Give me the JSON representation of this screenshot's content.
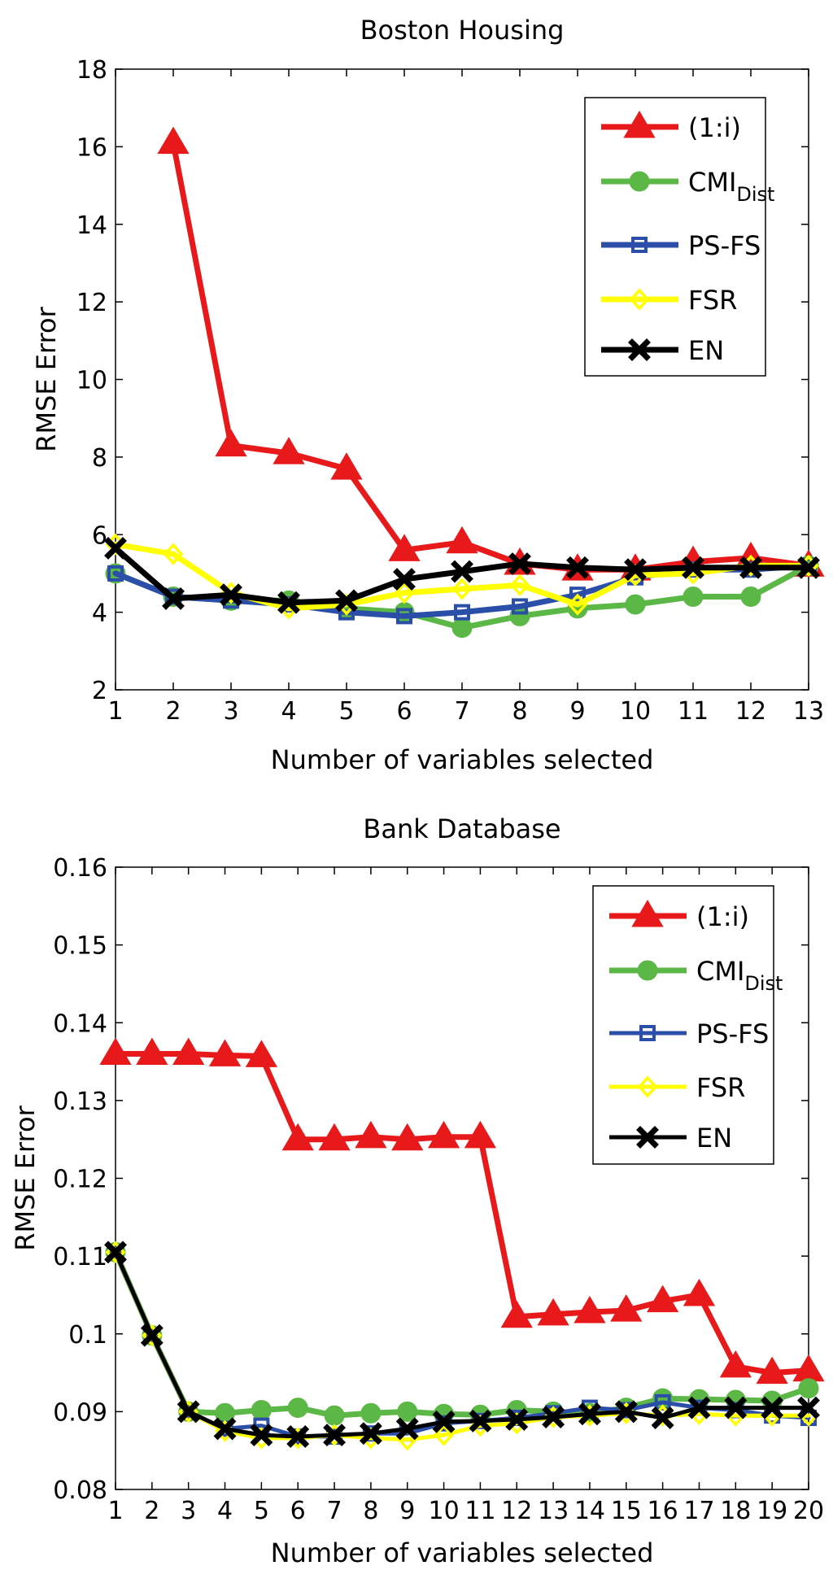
{
  "colors": {
    "red": "#e8191b",
    "green": "#5cb846",
    "blue": "#2b4ea8",
    "yellow": "#ffff00",
    "black": "#000000"
  },
  "chart_data": [
    {
      "type": "line",
      "title": "Boston Housing",
      "xlabel": "Number of variables selected",
      "ylabel": "RMSE Error",
      "xlim": [
        1,
        13
      ],
      "ylim": [
        2,
        18
      ],
      "xticks": [
        1,
        2,
        3,
        4,
        5,
        6,
        7,
        8,
        9,
        10,
        11,
        12,
        13
      ],
      "yticks": [
        2,
        4,
        6,
        8,
        10,
        12,
        14,
        16,
        18
      ],
      "ytick_labels": [
        "2",
        "4",
        "6",
        "8",
        "10",
        "12",
        "14",
        "16",
        "18"
      ],
      "legend_position": "top-right",
      "series": [
        {
          "name": "(1:i)",
          "label_main": "(1:i)",
          "label_sub": "",
          "color": "red",
          "marker": "triangle",
          "x": [
            2,
            3,
            4,
            5,
            6,
            7,
            8,
            9,
            10,
            11,
            12,
            13
          ],
          "y": [
            16.1,
            8.3,
            8.1,
            7.7,
            5.6,
            5.8,
            5.25,
            5.1,
            5.1,
            5.3,
            5.4,
            5.2
          ]
        },
        {
          "name": "CMI_Dist",
          "label_main": "CMI",
          "label_sub": "Dist",
          "color": "green",
          "marker": "circle",
          "x": [
            1,
            2,
            3,
            4,
            5,
            6,
            7,
            8,
            9,
            10,
            11,
            12,
            13
          ],
          "y": [
            5.0,
            4.4,
            4.3,
            4.3,
            4.1,
            4.0,
            3.6,
            3.9,
            4.1,
            4.2,
            4.4,
            4.4,
            5.2
          ]
        },
        {
          "name": "PS-FS",
          "label_main": "PS-FS",
          "label_sub": "",
          "color": "blue",
          "marker": "square",
          "x": [
            1,
            2,
            3,
            4,
            5,
            6,
            7,
            8,
            9,
            10,
            11,
            12,
            13
          ],
          "y": [
            5.0,
            4.4,
            4.3,
            4.2,
            4.0,
            3.9,
            4.0,
            4.15,
            4.45,
            4.9,
            5.1,
            5.1,
            5.2
          ]
        },
        {
          "name": "FSR",
          "label_main": "FSR",
          "label_sub": "",
          "color": "yellow",
          "marker": "diamond",
          "x": [
            1,
            2,
            3,
            4,
            5,
            6,
            7,
            8,
            9,
            10,
            11,
            12,
            13
          ],
          "y": [
            5.75,
            5.5,
            4.5,
            4.1,
            4.2,
            4.5,
            4.6,
            4.7,
            4.2,
            4.95,
            5.0,
            5.2,
            5.2
          ]
        },
        {
          "name": "EN",
          "label_main": "EN",
          "label_sub": "",
          "color": "black",
          "marker": "x",
          "x": [
            1,
            2,
            3,
            4,
            5,
            6,
            7,
            8,
            9,
            10,
            11,
            12,
            13
          ],
          "y": [
            5.65,
            4.35,
            4.45,
            4.25,
            4.3,
            4.85,
            5.05,
            5.25,
            5.15,
            5.1,
            5.15,
            5.15,
            5.15
          ]
        }
      ]
    },
    {
      "type": "line",
      "title": "Bank Database",
      "xlabel": "Number of variables selected",
      "ylabel": "RMSE Error",
      "xlim": [
        1,
        20
      ],
      "ylim": [
        0.08,
        0.16
      ],
      "xticks": [
        1,
        2,
        3,
        4,
        5,
        6,
        7,
        8,
        9,
        10,
        11,
        12,
        13,
        14,
        15,
        16,
        17,
        18,
        19,
        20
      ],
      "yticks": [
        0.08,
        0.09,
        0.1,
        0.11,
        0.12,
        0.13,
        0.14,
        0.15,
        0.16
      ],
      "ytick_labels": [
        "0.08",
        "0.09",
        "0.1",
        "0.11",
        "0.12",
        "0.13",
        "0.14",
        "0.15",
        "0.16"
      ],
      "legend_position": "top-right",
      "series": [
        {
          "name": "(1:i)",
          "label_main": "(1:i)",
          "label_sub": "",
          "color": "red",
          "marker": "triangle",
          "x": [
            1,
            2,
            3,
            4,
            5,
            6,
            7,
            8,
            9,
            10,
            11,
            12,
            13,
            14,
            15,
            16,
            17,
            18,
            19,
            20
          ],
          "y": [
            0.136,
            0.136,
            0.136,
            0.1358,
            0.1357,
            0.125,
            0.125,
            0.1253,
            0.125,
            0.1253,
            0.1253,
            0.1022,
            0.1025,
            0.1028,
            0.103,
            0.1042,
            0.105,
            0.0958,
            0.095,
            0.0953
          ]
        },
        {
          "name": "CMI_Dist",
          "label_main": "CMI",
          "label_sub": "Dist",
          "color": "green",
          "marker": "circle",
          "x": [
            1,
            2,
            3,
            4,
            5,
            6,
            7,
            8,
            9,
            10,
            11,
            12,
            13,
            14,
            15,
            16,
            17,
            18,
            19,
            20
          ],
          "y": [
            0.1105,
            0.0998,
            0.09,
            0.0898,
            0.0902,
            0.0905,
            0.0895,
            0.0898,
            0.09,
            0.0897,
            0.0896,
            0.0902,
            0.09,
            0.0898,
            0.0905,
            0.0917,
            0.0916,
            0.0915,
            0.0914,
            0.093
          ]
        },
        {
          "name": "PS-FS",
          "label_main": "PS-FS",
          "label_sub": "",
          "color": "blue",
          "marker": "square",
          "x": [
            1,
            2,
            3,
            4,
            5,
            6,
            7,
            8,
            9,
            10,
            11,
            12,
            13,
            14,
            15,
            16,
            17,
            18,
            19,
            20
          ],
          "y": [
            0.1105,
            0.0998,
            0.09,
            0.0878,
            0.0882,
            0.0868,
            0.0868,
            0.0872,
            0.0872,
            0.0885,
            0.0888,
            0.0892,
            0.0898,
            0.0905,
            0.0902,
            0.0912,
            0.0905,
            0.0902,
            0.0895,
            0.0892
          ]
        },
        {
          "name": "FSR",
          "label_main": "FSR",
          "label_sub": "",
          "color": "yellow",
          "marker": "diamond",
          "x": [
            1,
            2,
            3,
            4,
            5,
            6,
            7,
            8,
            9,
            10,
            11,
            12,
            13,
            14,
            15,
            16,
            17,
            18,
            19,
            20
          ],
          "y": [
            0.1105,
            0.0998,
            0.09,
            0.0875,
            0.0866,
            0.0866,
            0.087,
            0.0866,
            0.0864,
            0.087,
            0.0882,
            0.0885,
            0.0893,
            0.0895,
            0.0898,
            0.0895,
            0.0897,
            0.0895,
            0.0895,
            0.0895
          ]
        },
        {
          "name": "EN",
          "label_main": "EN",
          "label_sub": "",
          "color": "black",
          "marker": "x",
          "x": [
            1,
            2,
            3,
            4,
            5,
            6,
            7,
            8,
            9,
            10,
            11,
            12,
            13,
            14,
            15,
            16,
            17,
            18,
            19,
            20
          ],
          "y": [
            0.1105,
            0.0998,
            0.09,
            0.0878,
            0.087,
            0.0868,
            0.087,
            0.0872,
            0.0878,
            0.0887,
            0.0888,
            0.089,
            0.0893,
            0.0897,
            0.09,
            0.0892,
            0.0905,
            0.0905,
            0.0905,
            0.0905
          ]
        }
      ]
    }
  ]
}
